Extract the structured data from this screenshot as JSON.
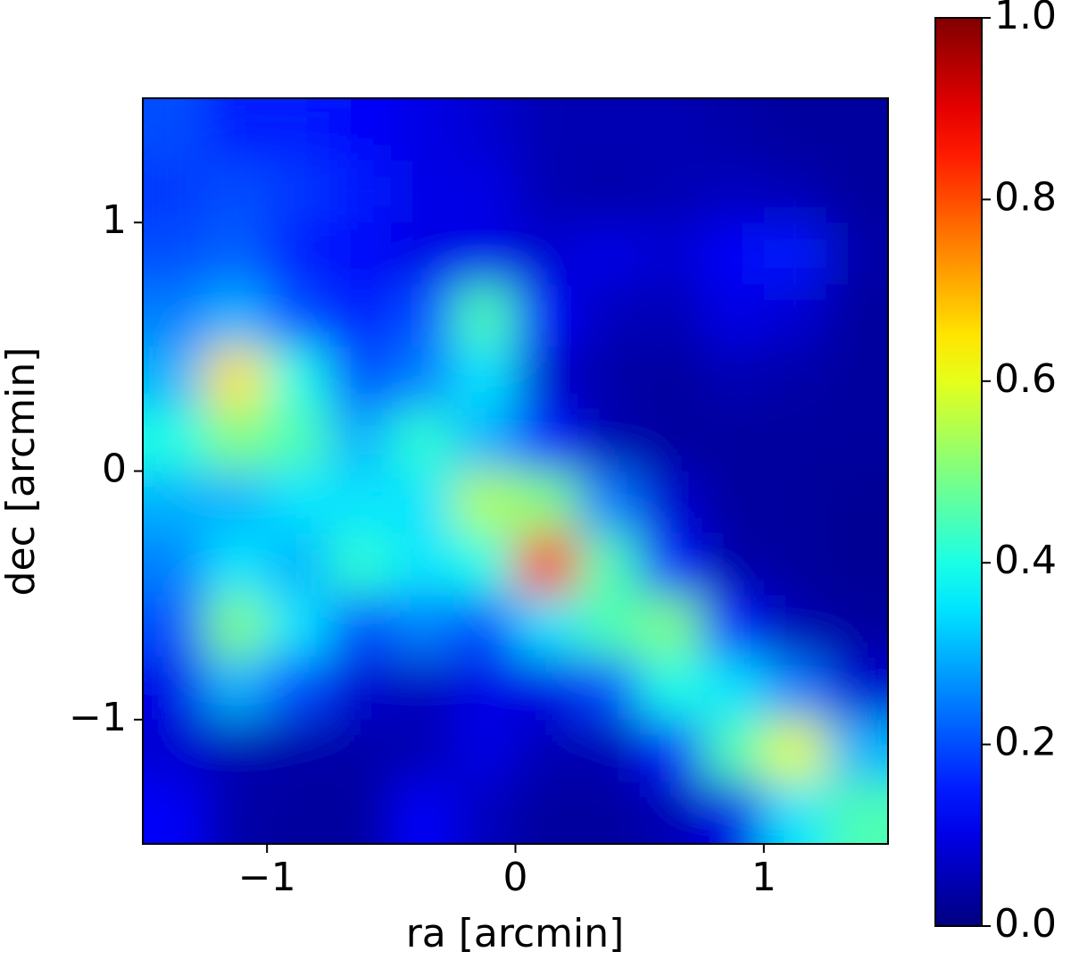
{
  "chart_data": {
    "type": "heatmap",
    "xlabel": "ra [arcmin]",
    "ylabel": "dec [arcmin]",
    "xlim": [
      -1.5,
      1.5
    ],
    "ylim": [
      -1.5,
      1.5
    ],
    "xticks": [
      {
        "value": -1,
        "label": "−1"
      },
      0,
      1
    ],
    "yticks": [
      {
        "value": -1,
        "label": "−1"
      },
      0,
      1
    ],
    "colormap": "jet",
    "clim": [
      0,
      1
    ],
    "cticks": [
      {
        "value": 0,
        "label": "0.0"
      },
      0.2,
      0.4,
      0.6,
      0.8,
      {
        "value": 1,
        "label": "1.0"
      }
    ],
    "z": [
      [
        0.2,
        0.15,
        0.15,
        0.12,
        0.1,
        0.08,
        0.05,
        0.05,
        0.05,
        0.04,
        0.03,
        0.03
      ],
      [
        0.18,
        0.2,
        0.18,
        0.15,
        0.1,
        0.1,
        0.05,
        0.04,
        0.05,
        0.06,
        0.05,
        0.03
      ],
      [
        0.2,
        0.22,
        0.15,
        0.12,
        0.1,
        0.1,
        0.08,
        0.1,
        0.08,
        0.12,
        0.15,
        0.04
      ],
      [
        0.25,
        0.3,
        0.2,
        0.15,
        0.2,
        0.45,
        0.12,
        0.06,
        0.05,
        0.1,
        0.08,
        0.03
      ],
      [
        0.3,
        0.65,
        0.4,
        0.2,
        0.25,
        0.35,
        0.08,
        0.04,
        0.03,
        0.05,
        0.04,
        0.03
      ],
      [
        0.4,
        0.5,
        0.45,
        0.3,
        0.42,
        0.3,
        0.15,
        0.05,
        0.03,
        0.03,
        0.03,
        0.03
      ],
      [
        0.3,
        0.3,
        0.35,
        0.35,
        0.35,
        0.55,
        0.5,
        0.25,
        0.08,
        0.03,
        0.03,
        0.02
      ],
      [
        0.25,
        0.35,
        0.3,
        0.42,
        0.35,
        0.4,
        0.85,
        0.45,
        0.15,
        0.04,
        0.03,
        0.02
      ],
      [
        0.2,
        0.5,
        0.35,
        0.2,
        0.25,
        0.2,
        0.35,
        0.45,
        0.5,
        0.15,
        0.05,
        0.03
      ],
      [
        0.1,
        0.3,
        0.2,
        0.08,
        0.06,
        0.1,
        0.1,
        0.2,
        0.4,
        0.35,
        0.25,
        0.08
      ],
      [
        0.08,
        0.05,
        0.04,
        0.04,
        0.05,
        0.1,
        0.05,
        0.05,
        0.15,
        0.45,
        0.6,
        0.3
      ],
      [
        0.12,
        0.04,
        0.03,
        0.03,
        0.12,
        0.06,
        0.03,
        0.03,
        0.05,
        0.1,
        0.35,
        0.45
      ]
    ]
  }
}
